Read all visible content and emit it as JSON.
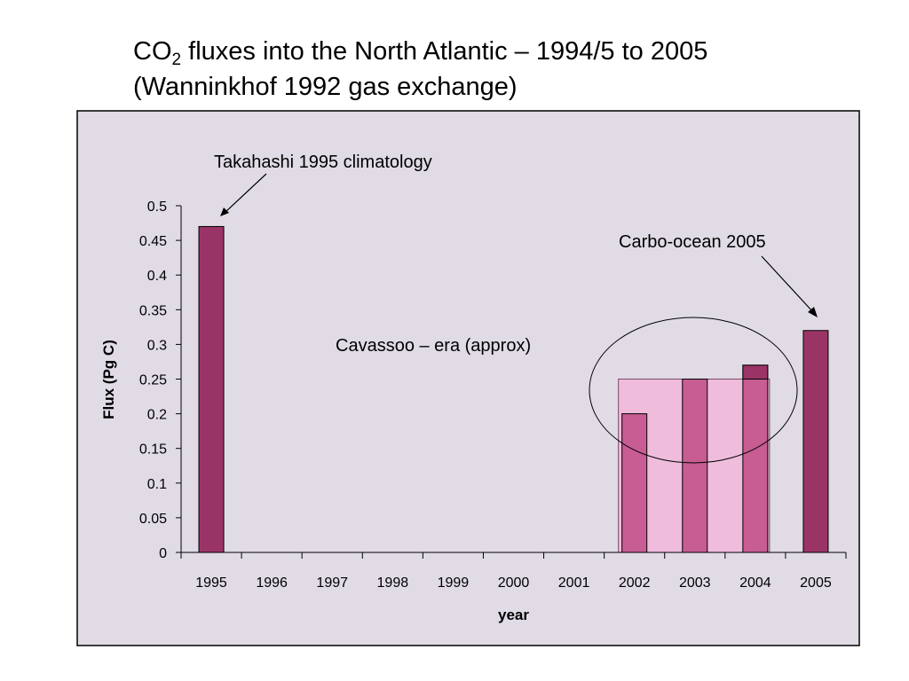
{
  "title": {
    "prefix": "CO",
    "subscript": "2",
    "line1_rest": " fluxes into the North Atlantic – 1994/5 to 2005",
    "line2": "(Wanninkhof 1992 gas exchange)"
  },
  "chart_data": {
    "type": "bar",
    "xlabel": "year",
    "ylabel": "Flux (Pg C)",
    "ylim": [
      0,
      0.5
    ],
    "yticks": [
      "0",
      "0.05",
      "0.1",
      "0.15",
      "0.2",
      "0.25",
      "0.3",
      "0.35",
      "0.4",
      "0.45",
      "0.5"
    ],
    "categories": [
      "1995",
      "1996",
      "1997",
      "1998",
      "1999",
      "2000",
      "2001",
      "2002",
      "2003",
      "2004",
      "2005"
    ],
    "values": [
      0.47,
      null,
      null,
      null,
      null,
      null,
      null,
      0.2,
      0.25,
      0.27,
      0.32
    ],
    "grid": false,
    "era_band": {
      "from": "2002",
      "to": "2004",
      "value": 0.25
    },
    "annotations": [
      {
        "text": "Takahashi 1995 climatology",
        "target": "1995"
      },
      {
        "text": "Carbo-ocean 2005",
        "target": "2005"
      },
      {
        "text": "Cavassoo – era (approx)",
        "target": "2002-2004"
      }
    ],
    "colors": {
      "plot_background": "#e1dbe6",
      "bar_dark": "#9b3466",
      "bar_mid": "#c75d92",
      "era_band_fill": "#efbcdc",
      "era_band_edge": "#7a4a68"
    }
  }
}
